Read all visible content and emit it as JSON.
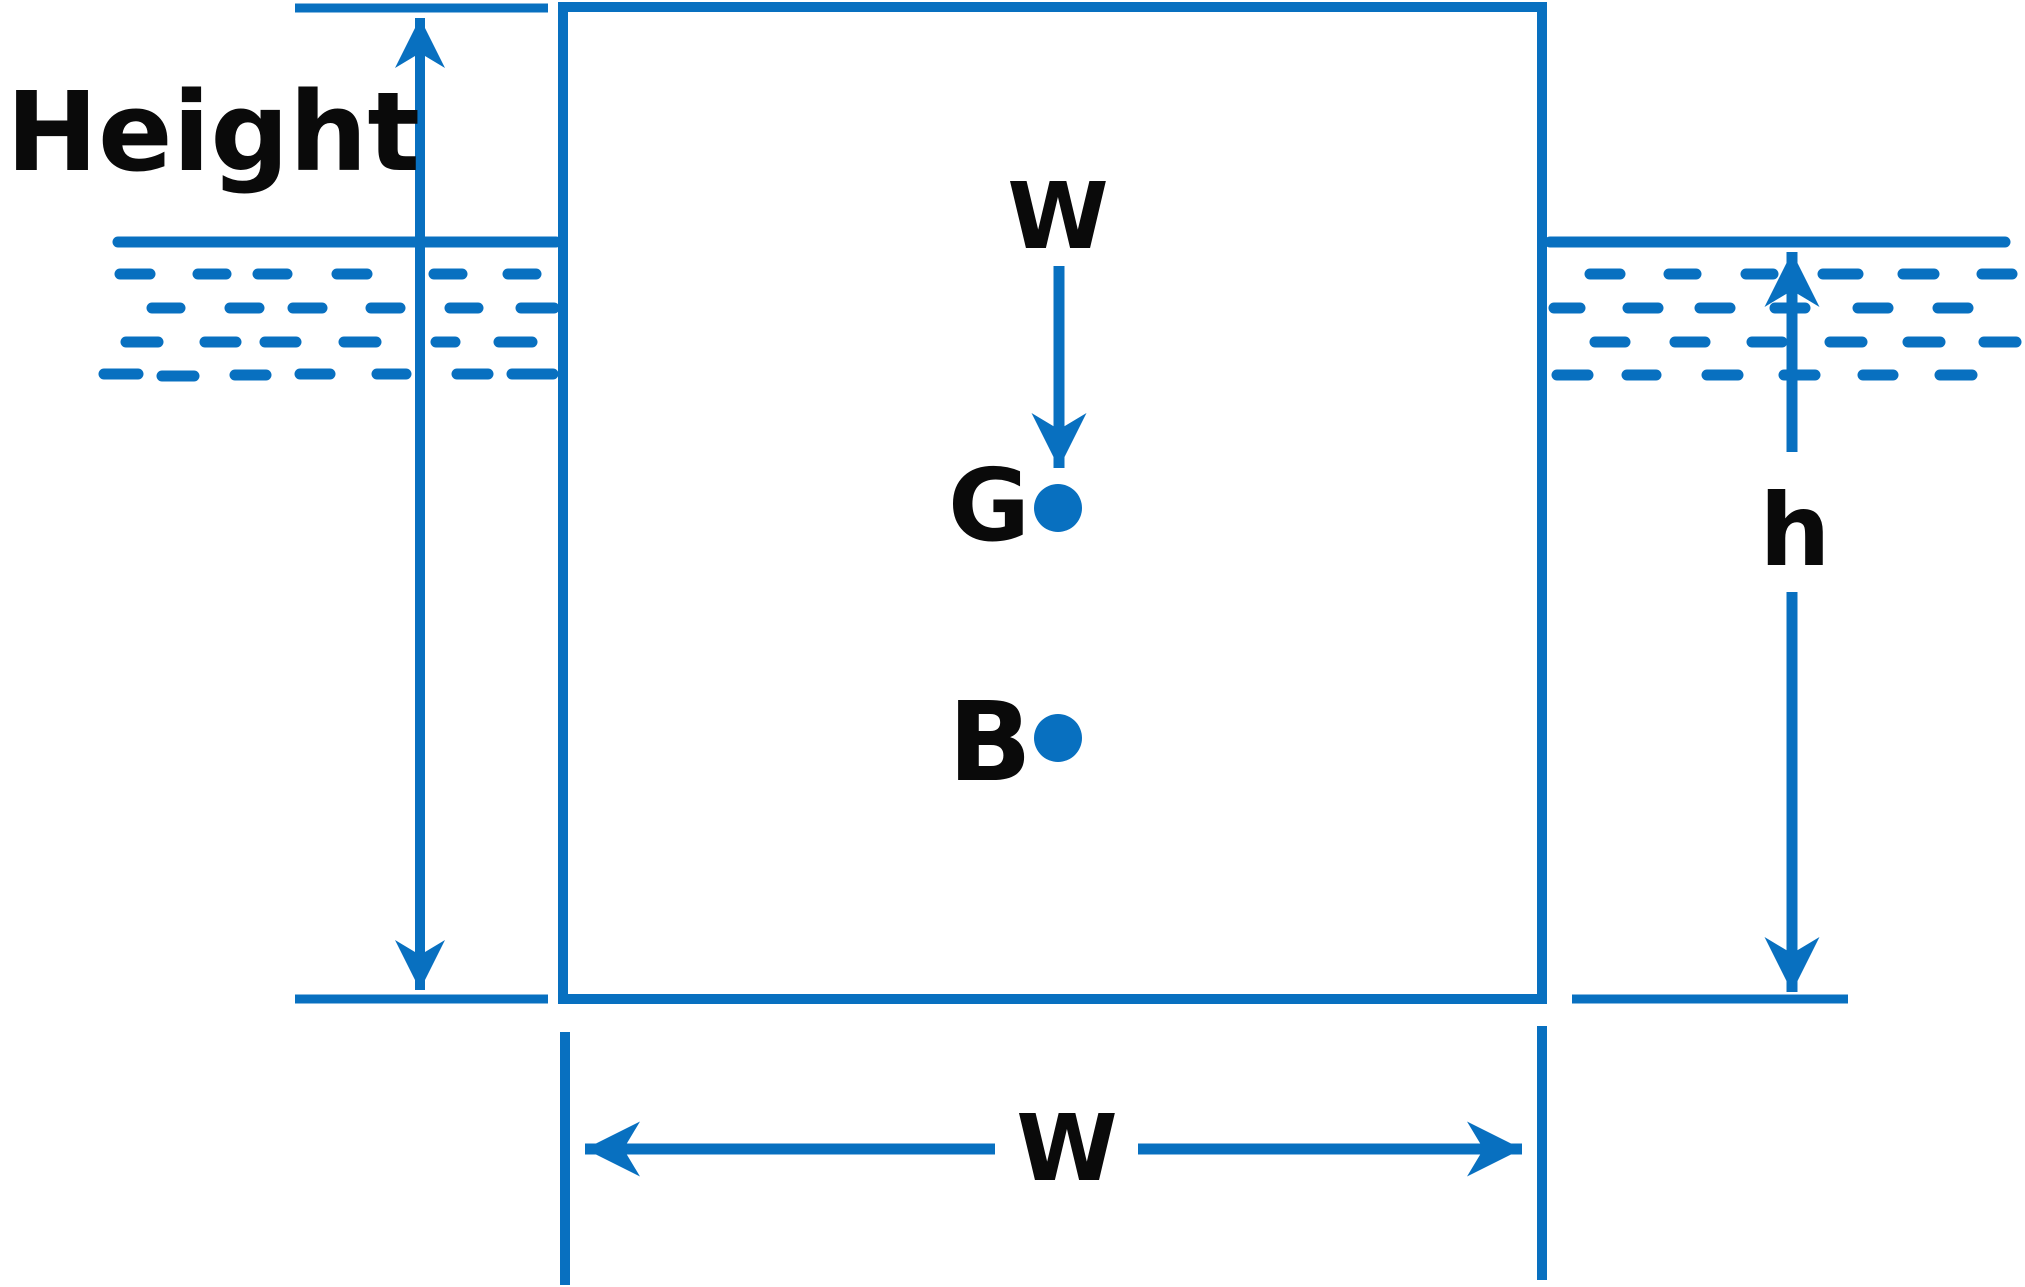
{
  "labels": {
    "height": "Height",
    "weight": "W",
    "center_of_gravity": "G",
    "center_of_buoyancy": "B",
    "draft": "h",
    "width": "W"
  },
  "colors": {
    "stroke": "#0870c0",
    "text": "#0a0a0a",
    "background": "#ffffff"
  }
}
